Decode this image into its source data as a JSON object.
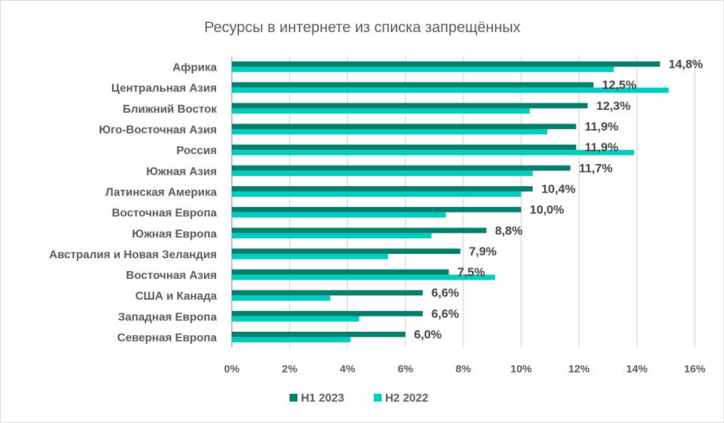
{
  "chart_data": {
    "type": "bar",
    "orientation": "horizontal",
    "title": "Ресурсы в интернете из списка запрещённых",
    "xlabel": "",
    "ylabel": "",
    "xlim": [
      0,
      16
    ],
    "x_ticks": [
      "0%",
      "2%",
      "4%",
      "6%",
      "8%",
      "10%",
      "12%",
      "14%",
      "16%"
    ],
    "grid": true,
    "legend_position": "bottom",
    "categories": [
      "Африка",
      "Центральная Азия",
      "Ближний Восток",
      "Юго-Восточная Азия",
      "Россия",
      "Южная Азия",
      "Латинская Америка",
      "Восточная Европа",
      "Южная Европа",
      "Австралия и Новая Зеландия",
      "Восточная Азия",
      "США и Канада",
      "Западная Европа",
      "Северная Европа"
    ],
    "series": [
      {
        "name": "H1 2023",
        "color": "#007F6D",
        "values": [
          14.8,
          12.5,
          12.3,
          11.9,
          11.9,
          11.7,
          10.4,
          10.0,
          8.8,
          7.9,
          7.5,
          6.6,
          6.6,
          6.0
        ],
        "labels": [
          "14,8%",
          "12,5%",
          "12,3%",
          "11,9%",
          "11,9%",
          "11,7%",
          "10,4%",
          "10,0%",
          "8,8%",
          "7,9%",
          "7,5%",
          "6,6%",
          "6,6%",
          "6,0%"
        ]
      },
      {
        "name": "H2 2022",
        "color": "#00CCC0",
        "values": [
          13.2,
          15.1,
          10.3,
          10.9,
          13.9,
          10.4,
          10.0,
          7.4,
          6.9,
          5.4,
          9.1,
          3.4,
          4.4,
          4.1
        ]
      }
    ]
  }
}
